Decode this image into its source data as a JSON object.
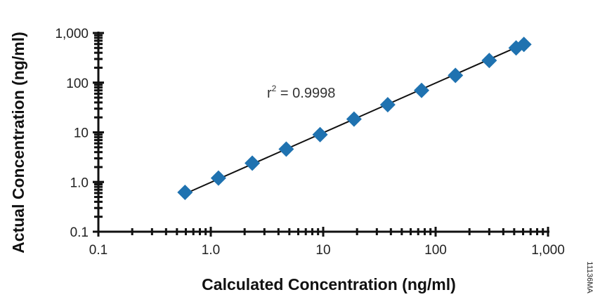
{
  "chart_data": {
    "type": "scatter",
    "x_scale": "log",
    "y_scale": "log",
    "xlabel": "Calculated Concentration (ng/ml)",
    "ylabel": "Actual Concentration (ng/ml)",
    "xlim": [
      0.1,
      1000
    ],
    "ylim": [
      0.1,
      1000
    ],
    "x_ticks": [
      {
        "value": 0.1,
        "label": "0.1"
      },
      {
        "value": 1,
        "label": "1.0"
      },
      {
        "value": 10,
        "label": "10"
      },
      {
        "value": 100,
        "label": "100"
      },
      {
        "value": 1000,
        "label": "1,000"
      }
    ],
    "y_ticks": [
      {
        "value": 0.1,
        "label": "0.1"
      },
      {
        "value": 1,
        "label": "1.0"
      },
      {
        "value": 10,
        "label": "10"
      },
      {
        "value": 100,
        "label": "100"
      },
      {
        "value": 1000,
        "label": "1,000"
      }
    ],
    "series": [
      {
        "marker": "diamond",
        "color": "#1f72b0",
        "points": [
          {
            "x": 0.59,
            "y": 0.62
          },
          {
            "x": 1.17,
            "y": 1.2
          },
          {
            "x": 2.34,
            "y": 2.4
          },
          {
            "x": 4.69,
            "y": 4.6
          },
          {
            "x": 9.38,
            "y": 9.0
          },
          {
            "x": 18.8,
            "y": 18.5
          },
          {
            "x": 37.5,
            "y": 36
          },
          {
            "x": 75,
            "y": 70
          },
          {
            "x": 150,
            "y": 140
          },
          {
            "x": 300,
            "y": 280
          },
          {
            "x": 520,
            "y": 500
          },
          {
            "x": 610,
            "y": 590
          }
        ]
      }
    ],
    "fit_line": {
      "color": "#111111",
      "x": [
        0.59,
        610
      ],
      "y": [
        0.58,
        600
      ]
    },
    "annotation": {
      "text_main": "r",
      "superscript": "2",
      "text_rest": " = 0.9998"
    },
    "figure_code": "11136MA",
    "grid": false,
    "legend": "none"
  }
}
